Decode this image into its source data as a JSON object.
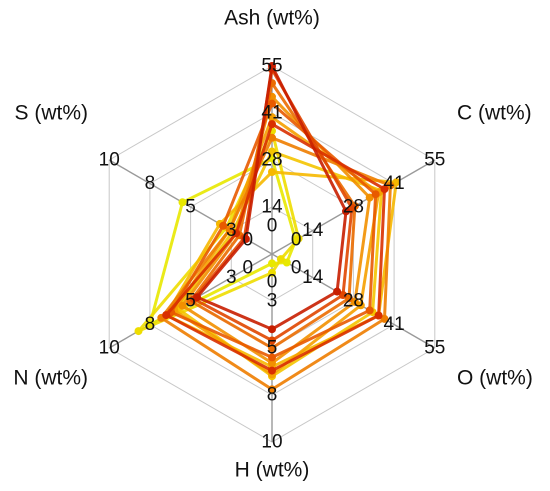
{
  "chart_data": {
    "type": "radar",
    "axes": [
      {
        "label": "Ash (wt%)",
        "ticks": [
          "0",
          "14",
          "28",
          "41",
          "55"
        ],
        "max": 55
      },
      {
        "label": "C (wt%)",
        "ticks": [
          "0",
          "14",
          "28",
          "41",
          "55"
        ],
        "max": 55
      },
      {
        "label": "O (wt%)",
        "ticks": [
          "0",
          "14",
          "28",
          "41",
          "55"
        ],
        "max": 55
      },
      {
        "label": "H (wt%)",
        "ticks": [
          "0",
          "3",
          "5",
          "8",
          "10"
        ],
        "max": 10
      },
      {
        "label": "N (wt%)",
        "ticks": [
          "0",
          "3",
          "5",
          "8",
          "10"
        ],
        "max": 10
      },
      {
        "label": "S (wt%)",
        "ticks": [
          "0",
          "3",
          "5",
          "8",
          "10"
        ],
        "max": 10
      }
    ],
    "axis_order_note": "",
    "grid": true,
    "series_colors": [
      "#e8e800",
      "#f4c400",
      "#f5a000",
      "#ee7d00",
      "#e85a00",
      "#d93000",
      "#c81e00"
    ],
    "series": [
      {
        "color": "#e8e800",
        "values": [
          28,
          8,
          5,
          0.5,
          7.5,
          5.5
        ]
      },
      {
        "color": "#eedd00",
        "values": [
          36,
          9,
          3,
          1,
          8.2,
          2.8
        ]
      },
      {
        "color": "#f4c400",
        "values": [
          30,
          37,
          34,
          6.5,
          5.8,
          2.4
        ]
      },
      {
        "color": "#f6b800",
        "values": [
          24,
          42,
          36,
          6.0,
          6.5,
          3.2
        ]
      },
      {
        "color": "#f5a000",
        "values": [
          40,
          36,
          30,
          6.4,
          6.0,
          2.6
        ]
      },
      {
        "color": "#f29000",
        "values": [
          46,
          33,
          28,
          5.8,
          5.5,
          2.2
        ]
      },
      {
        "color": "#ee7d00",
        "values": [
          34,
          40,
          38,
          7.2,
          6.8,
          2.6
        ]
      },
      {
        "color": "#eb6c00",
        "values": [
          50,
          28,
          26,
          5.0,
          5.0,
          2.0
        ]
      },
      {
        "color": "#e85a00",
        "values": [
          44,
          35,
          33,
          5.5,
          6.2,
          3.0
        ]
      },
      {
        "color": "#e04600",
        "values": [
          54,
          27,
          24,
          4.6,
          4.8,
          1.7
        ]
      },
      {
        "color": "#d93000",
        "values": [
          38,
          38,
          36,
          6.2,
          6.5,
          2.2
        ]
      },
      {
        "color": "#c81e00",
        "values": [
          55,
          25,
          22,
          4.0,
          4.6,
          1.6
        ]
      }
    ]
  }
}
